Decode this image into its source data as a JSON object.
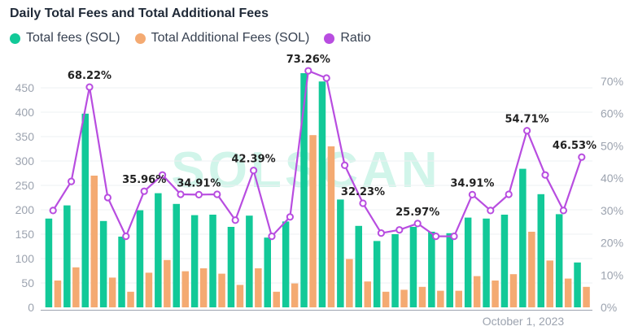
{
  "title": "Daily Total Fees and Total Additional Fees",
  "watermark": "SOLSCAN",
  "legend": [
    {
      "label": "Total fees (SOL)",
      "color": "#12c998"
    },
    {
      "label": "Total Additional Fees (SOL)",
      "color": "#f4aa72"
    },
    {
      "label": "Ratio",
      "color": "#b84de0"
    }
  ],
  "chart_data": {
    "type": "bar",
    "title": "Daily Total Fees and Total Additional Fees",
    "x_tick_labels": [
      "October 1, 2023"
    ],
    "y_left": {
      "ticks": [
        "0",
        "50",
        "100",
        "150",
        "200",
        "250",
        "300",
        "350",
        "400",
        "450"
      ],
      "lim": [
        0,
        480
      ]
    },
    "y_right": {
      "ticks": [
        "0%",
        "10%",
        "20%",
        "30%",
        "40%",
        "50%",
        "60%",
        "70%"
      ],
      "lim": [
        0,
        0.7
      ]
    },
    "series": [
      {
        "name": "Total fees (SOL)",
        "color": "#12c998",
        "values": [
          182,
          209,
          397,
          177,
          145,
          199,
          234,
          212,
          189,
          190,
          165,
          188,
          143,
          176,
          480,
          463,
          221,
          167,
          136,
          150,
          165,
          155,
          152,
          184,
          182,
          190,
          284,
          232,
          191,
          92
        ]
      },
      {
        "name": "Total Additional Fees (SOL)",
        "color": "#f4aa72",
        "values": [
          55,
          82,
          270,
          61,
          32,
          71,
          97,
          74,
          80,
          69,
          46,
          80,
          32,
          49,
          353,
          330,
          99,
          53,
          32,
          36,
          42,
          34,
          34,
          64,
          55,
          68,
          155,
          96,
          59,
          42
        ]
      },
      {
        "name": "Ratio",
        "color": "#b84de0",
        "axis": "right",
        "values": [
          0.3,
          0.39,
          0.6822,
          0.34,
          0.22,
          0.3596,
          0.41,
          0.35,
          0.3491,
          0.35,
          0.27,
          0.4239,
          0.22,
          0.28,
          0.7326,
          0.71,
          0.44,
          0.3223,
          0.23,
          0.24,
          0.2597,
          0.22,
          0.22,
          0.3491,
          0.3,
          0.35,
          0.5471,
          0.41,
          0.3,
          0.4653
        ]
      }
    ],
    "point_labels": [
      {
        "index": 2,
        "text": "68.22%"
      },
      {
        "index": 5,
        "text": "35.96%"
      },
      {
        "index": 8,
        "text": "34.91%"
      },
      {
        "index": 11,
        "text": "42.39%"
      },
      {
        "index": 14,
        "text": "73.26%"
      },
      {
        "index": 17,
        "text": "32.23%"
      },
      {
        "index": 20,
        "text": "25.97%"
      },
      {
        "index": 23,
        "text": "34.91%"
      },
      {
        "index": 26,
        "text": "54.71%"
      },
      {
        "index": 29,
        "text": "46.53%"
      }
    ]
  }
}
